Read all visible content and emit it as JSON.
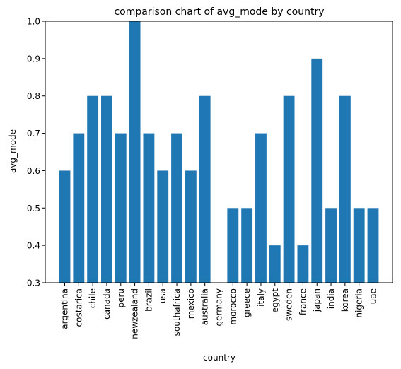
{
  "chart_data": {
    "type": "bar",
    "title": "comparison chart of avg_mode by country",
    "xlabel": "country",
    "ylabel": "avg_mode",
    "ylim": [
      0.3,
      1.0
    ],
    "yticks": [
      "0.3",
      "0.4",
      "0.5",
      "0.6",
      "0.7",
      "0.8",
      "0.9",
      "1.0"
    ],
    "categories": [
      "argentina",
      "costarica",
      "chile",
      "canada",
      "peru",
      "newzealand",
      "brazil",
      "usa",
      "southafrica",
      "mexico",
      "australia",
      "germany",
      "morocco",
      "greece",
      "italy",
      "egypt",
      "sweden",
      "france",
      "japan",
      "india",
      "korea",
      "nigeria",
      "uae"
    ],
    "values": [
      0.6,
      0.7,
      0.8,
      0.8,
      0.7,
      1.0,
      0.7,
      0.6,
      0.7,
      0.6,
      0.8,
      0.3,
      0.5,
      0.5,
      0.7,
      0.4,
      0.8,
      0.4,
      0.9,
      0.5,
      0.8,
      0.5,
      0.5
    ],
    "bar_color": "#1f77b4",
    "grid": false,
    "legend": false
  }
}
